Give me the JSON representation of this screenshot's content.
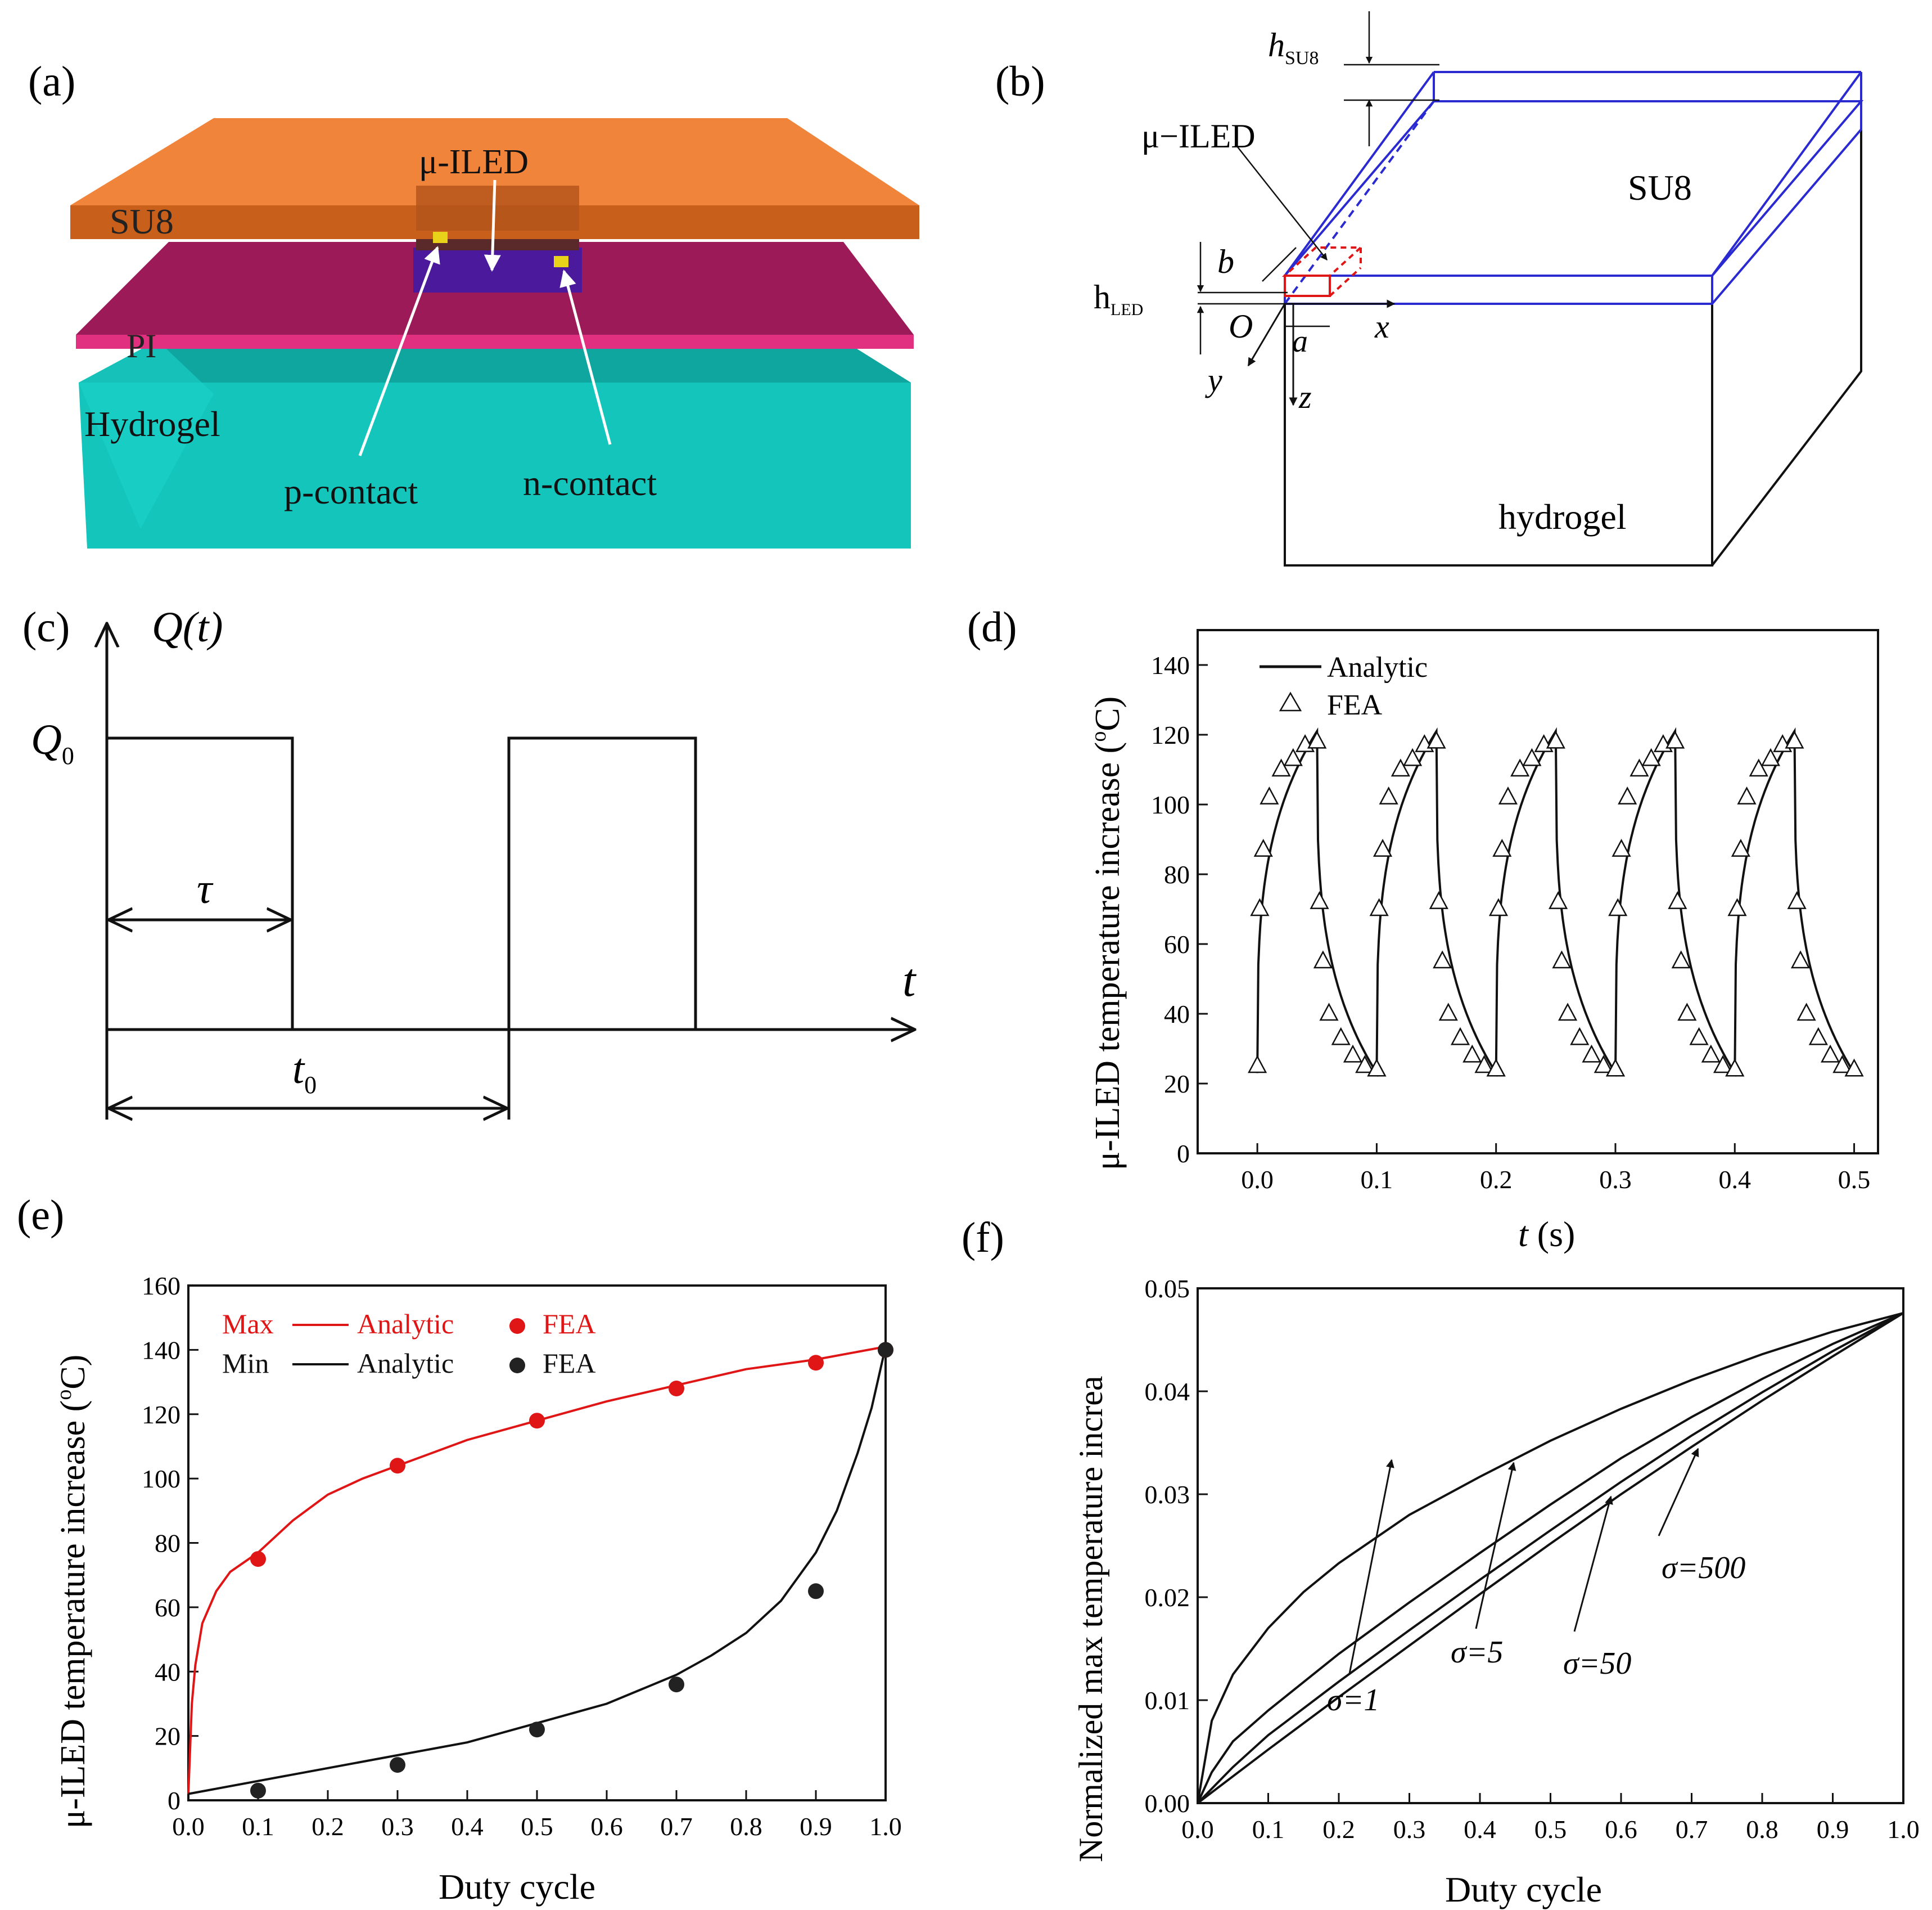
{
  "colors": {
    "su8": "#f07a2a",
    "su8_dark": "#c85f1a",
    "pi": "#9c1a57",
    "pi_edge": "#e0307f",
    "hydrogel": "#14c5bb",
    "hydrogel_dark": "#0ea69e",
    "led": "#4b1a9c",
    "contact": "#e8d21a",
    "box_blue": "#2a2ad0",
    "red": "#e01515",
    "black": "#111111"
  },
  "panel_a": {
    "label": "(a)",
    "su8": "SU8",
    "led": "μ-ILED",
    "pi": "PI",
    "hydrogel": "Hydrogel",
    "p_contact": "p-contact",
    "n_contact": "n-contact"
  },
  "panel_b": {
    "label": "(b)",
    "h_su8": "h",
    "h_su8_sub": "SU8",
    "led": "μ−ILED",
    "su8": "SU8",
    "h_led": "h",
    "h_led_sub": "LED",
    "b": "b",
    "a": "a",
    "origin": "O",
    "x": "x",
    "y": "y",
    "z": "z",
    "hydrogel": "hydrogel"
  },
  "panel_c": {
    "label": "(c)",
    "q_axis": "Q(t)",
    "q0": "Q",
    "q0_sub": "0",
    "tau": "τ",
    "t_axis": "t",
    "t0": "t",
    "t0_sub": "0"
  },
  "chart_data": [
    {
      "panel": "(d)",
      "type": "line",
      "xlabel": "t (s)",
      "xlabel_italic": "t",
      "xlabel_unit": " (s)",
      "ylabel": "μ-ILED temperature increase (°C)",
      "ylabel_text": "μ-ILED temperature increase (",
      "ylabel_sup": "o",
      "ylabel_end": "C)",
      "xlim": [
        -0.05,
        0.52
      ],
      "ylim": [
        0,
        150
      ],
      "xticks": [
        "0.0",
        "0.1",
        "0.2",
        "0.3",
        "0.4",
        "0.5"
      ],
      "yticks": [
        "0",
        "20",
        "40",
        "60",
        "80",
        "100",
        "120",
        "140"
      ],
      "legend": [
        "Analytic",
        "FEA"
      ],
      "legend_position": "top-left",
      "period": 0.1,
      "pulse_width": 0.05,
      "t_min": 23,
      "t_max": 121,
      "fea_points": [
        [
          0.0,
          25
        ],
        [
          0.002,
          70
        ],
        [
          0.005,
          87
        ],
        [
          0.01,
          102
        ],
        [
          0.02,
          110
        ],
        [
          0.03,
          113
        ],
        [
          0.04,
          117
        ],
        [
          0.05,
          118
        ],
        [
          0.052,
          72
        ],
        [
          0.055,
          55
        ],
        [
          0.06,
          40
        ],
        [
          0.07,
          33
        ],
        [
          0.08,
          28
        ],
        [
          0.09,
          25
        ],
        [
          0.1,
          24
        ],
        [
          0.1,
          24
        ],
        [
          0.102,
          70
        ],
        [
          0.105,
          87
        ],
        [
          0.11,
          102
        ],
        [
          0.12,
          110
        ],
        [
          0.13,
          113
        ],
        [
          0.14,
          117
        ],
        [
          0.15,
          118
        ],
        [
          0.152,
          72
        ],
        [
          0.155,
          55
        ],
        [
          0.16,
          40
        ],
        [
          0.17,
          33
        ],
        [
          0.18,
          28
        ],
        [
          0.19,
          25
        ],
        [
          0.2,
          24
        ],
        [
          0.2,
          24
        ],
        [
          0.202,
          70
        ],
        [
          0.205,
          87
        ],
        [
          0.21,
          102
        ],
        [
          0.22,
          110
        ],
        [
          0.23,
          113
        ],
        [
          0.24,
          117
        ],
        [
          0.25,
          118
        ],
        [
          0.252,
          72
        ],
        [
          0.255,
          55
        ],
        [
          0.26,
          40
        ],
        [
          0.27,
          33
        ],
        [
          0.28,
          28
        ],
        [
          0.29,
          25
        ],
        [
          0.3,
          24
        ],
        [
          0.3,
          24
        ],
        [
          0.302,
          70
        ],
        [
          0.305,
          87
        ],
        [
          0.31,
          102
        ],
        [
          0.32,
          110
        ],
        [
          0.33,
          113
        ],
        [
          0.34,
          117
        ],
        [
          0.35,
          118
        ],
        [
          0.352,
          72
        ],
        [
          0.355,
          55
        ],
        [
          0.36,
          40
        ],
        [
          0.37,
          33
        ],
        [
          0.38,
          28
        ],
        [
          0.39,
          25
        ],
        [
          0.4,
          24
        ],
        [
          0.4,
          24
        ],
        [
          0.402,
          70
        ],
        [
          0.405,
          87
        ],
        [
          0.41,
          102
        ],
        [
          0.42,
          110
        ],
        [
          0.43,
          113
        ],
        [
          0.44,
          117
        ],
        [
          0.45,
          118
        ],
        [
          0.452,
          72
        ],
        [
          0.455,
          55
        ],
        [
          0.46,
          40
        ],
        [
          0.47,
          33
        ],
        [
          0.48,
          28
        ],
        [
          0.49,
          25
        ],
        [
          0.5,
          24
        ]
      ]
    },
    {
      "panel": "(e)",
      "type": "line",
      "xlabel": "Duty cycle",
      "ylabel": "μ-ILED temperature increase (°C)",
      "ylabel_text": "μ-ILED temperature increase (",
      "ylabel_sup": "o",
      "ylabel_end": "C)",
      "xlim": [
        0,
        1
      ],
      "ylim": [
        0,
        160
      ],
      "xticks": [
        "0.0",
        "0.1",
        "0.2",
        "0.3",
        "0.4",
        "0.5",
        "0.6",
        "0.7",
        "0.8",
        "0.9",
        "1.0"
      ],
      "yticks": [
        "0",
        "20",
        "40",
        "60",
        "80",
        "100",
        "120",
        "140",
        "160"
      ],
      "legend_position": "top-left",
      "legend": {
        "max": "Max",
        "min": "Min",
        "analytic": "Analytic",
        "fea": "FEA"
      },
      "series": [
        {
          "name": "Max Analytic",
          "color": "red",
          "x": [
            0.0,
            0.005,
            0.01,
            0.02,
            0.04,
            0.06,
            0.08,
            0.1,
            0.15,
            0.2,
            0.25,
            0.3,
            0.4,
            0.5,
            0.6,
            0.7,
            0.8,
            0.9,
            1.0
          ],
          "values": [
            2,
            30,
            42,
            55,
            65,
            71,
            74,
            77,
            87,
            95,
            100,
            104,
            112,
            118,
            124,
            129,
            134,
            137,
            141
          ]
        },
        {
          "name": "Min Analytic",
          "color": "black",
          "x": [
            0.0,
            0.1,
            0.2,
            0.3,
            0.4,
            0.5,
            0.6,
            0.7,
            0.75,
            0.8,
            0.85,
            0.9,
            0.93,
            0.96,
            0.98,
            1.0
          ],
          "values": [
            2,
            6,
            10,
            14,
            18,
            24,
            30,
            39,
            45,
            52,
            62,
            77,
            90,
            108,
            122,
            141
          ]
        },
        {
          "name": "Max FEA",
          "color": "red",
          "x": [
            0.1,
            0.3,
            0.5,
            0.7,
            0.9,
            1.0
          ],
          "values": [
            75,
            104,
            118,
            128,
            136,
            140
          ]
        },
        {
          "name": "Min FEA",
          "color": "black",
          "x": [
            0.1,
            0.3,
            0.5,
            0.7,
            0.9,
            1.0
          ],
          "values": [
            3,
            11,
            22,
            36,
            65,
            140
          ]
        }
      ]
    },
    {
      "panel": "(f)",
      "type": "line",
      "xlabel": "Duty cycle",
      "ylabel": "Normalized max temperature increa",
      "xlim": [
        0,
        1
      ],
      "ylim": [
        0,
        0.05
      ],
      "xticks": [
        "0.0",
        "0.1",
        "0.2",
        "0.3",
        "0.4",
        "0.5",
        "0.6",
        "0.7",
        "0.8",
        "0.9",
        "1.0"
      ],
      "yticks": [
        "0.00",
        "0.01",
        "0.02",
        "0.03",
        "0.04",
        "0.05"
      ],
      "series": [
        {
          "name": "σ=1",
          "x": [
            0.0,
            0.02,
            0.05,
            0.1,
            0.15,
            0.2,
            0.3,
            0.4,
            0.5,
            0.6,
            0.7,
            0.8,
            0.9,
            1.0
          ],
          "values": [
            0,
            0.008,
            0.0125,
            0.017,
            0.0205,
            0.0233,
            0.028,
            0.0317,
            0.0352,
            0.0383,
            0.0411,
            0.0436,
            0.0458,
            0.0476
          ]
        },
        {
          "name": "σ=5",
          "x": [
            0.0,
            0.02,
            0.05,
            0.1,
            0.2,
            0.3,
            0.4,
            0.5,
            0.6,
            0.7,
            0.8,
            0.9,
            1.0
          ],
          "values": [
            0,
            0.003,
            0.006,
            0.009,
            0.0145,
            0.0195,
            0.0243,
            0.029,
            0.0335,
            0.0375,
            0.0412,
            0.0446,
            0.0476
          ]
        },
        {
          "name": "σ=50",
          "x": [
            0.0,
            0.05,
            0.1,
            0.2,
            0.3,
            0.4,
            0.5,
            0.6,
            0.7,
            0.8,
            0.9,
            1.0
          ],
          "values": [
            0,
            0.0035,
            0.0066,
            0.0118,
            0.0168,
            0.0217,
            0.0265,
            0.0312,
            0.0357,
            0.0399,
            0.0439,
            0.0476
          ]
        },
        {
          "name": "σ=500",
          "x": [
            0.0,
            0.1,
            0.2,
            0.3,
            0.4,
            0.5,
            0.6,
            0.7,
            0.8,
            0.9,
            1.0
          ],
          "values": [
            0,
            0.0052,
            0.0103,
            0.0153,
            0.0203,
            0.0252,
            0.03,
            0.0346,
            0.0391,
            0.0434,
            0.0476
          ]
        }
      ],
      "annotations": {
        "s1": "σ=1",
        "s5": "σ=5",
        "s50": "σ=50",
        "s500": "σ=500"
      }
    }
  ],
  "panel_d_label": "(d)",
  "panel_e_label": "(e)",
  "panel_f_label": "(f)"
}
